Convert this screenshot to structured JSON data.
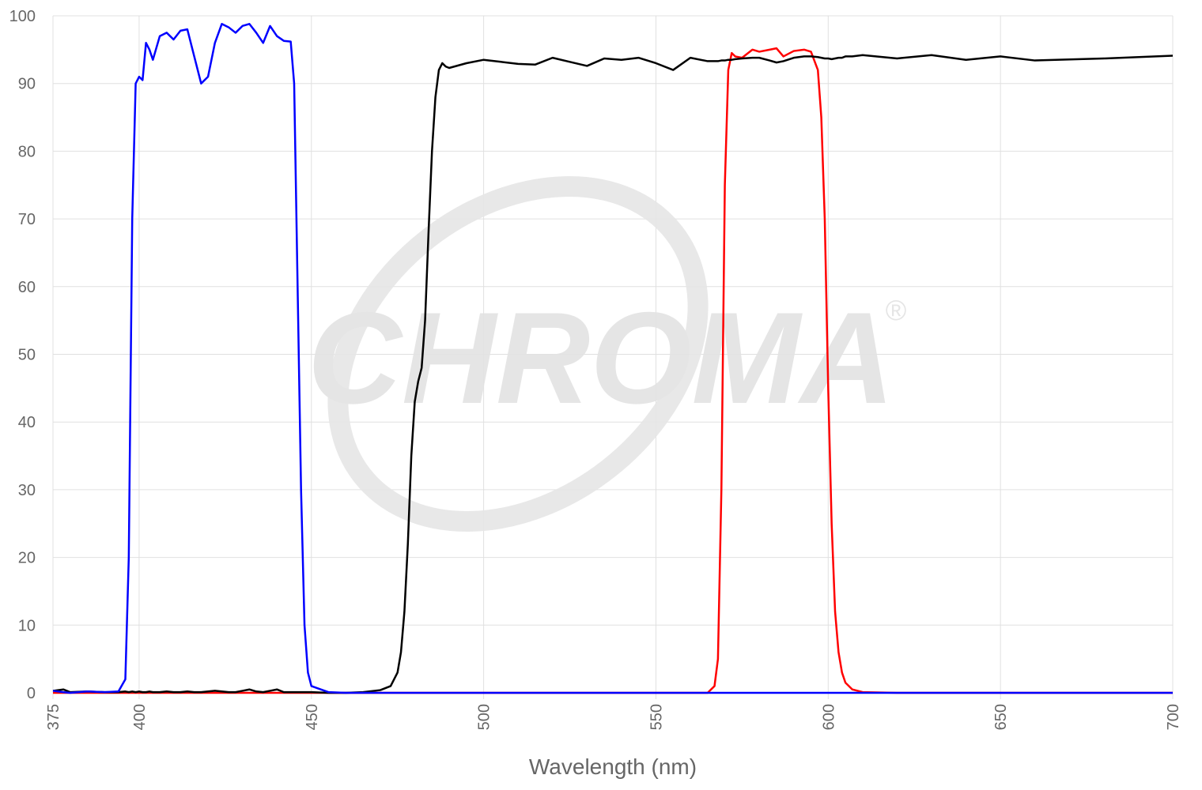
{
  "chart_data": {
    "type": "line",
    "x_label": "Wavelength (nm)",
    "watermark": "CHROMA",
    "watermark_symbol": "®",
    "x": [
      375,
      378,
      380,
      385,
      390,
      394,
      396,
      397,
      398,
      399,
      400,
      401,
      402,
      403,
      404,
      406,
      408,
      410,
      412,
      414,
      416,
      418,
      420,
      422,
      424,
      426,
      428,
      430,
      432,
      434,
      436,
      438,
      440,
      442,
      444,
      445,
      446,
      447,
      448,
      449,
      450,
      455,
      460,
      465,
      470,
      473,
      475,
      476,
      477,
      478,
      479,
      480,
      481,
      482,
      483,
      484,
      485,
      486,
      487,
      488,
      489,
      490,
      495,
      500,
      505,
      510,
      515,
      520,
      525,
      530,
      535,
      540,
      545,
      550,
      555,
      560,
      565,
      567,
      568,
      569,
      570,
      571,
      572,
      573,
      575,
      578,
      580,
      583,
      585,
      587,
      590,
      593,
      595,
      597,
      598,
      599,
      600,
      601,
      602,
      603,
      604,
      605,
      607,
      610,
      620,
      630,
      640,
      650,
      660,
      680,
      700
    ],
    "series": [
      {
        "color": "#ff0000",
        "values": [
          0,
          0,
          0,
          0,
          0,
          0,
          0,
          0,
          0,
          0,
          0,
          0,
          0,
          0,
          0,
          0,
          0,
          0,
          0,
          0,
          0,
          0,
          0,
          0,
          0,
          0,
          0,
          0,
          0,
          0,
          0,
          0,
          0,
          0,
          0,
          0,
          0,
          0,
          0,
          0,
          0,
          0,
          0,
          0,
          0,
          0,
          0,
          0,
          0,
          0,
          0,
          0,
          0,
          0,
          0,
          0,
          0,
          0,
          0,
          0,
          0,
          0,
          0,
          0,
          0,
          0,
          0,
          0,
          0,
          0,
          0,
          0,
          0,
          0,
          0,
          0,
          0,
          1,
          5,
          30,
          75,
          92,
          94.5,
          94,
          93.8,
          95,
          94.7,
          95,
          95.2,
          94,
          94.8,
          95,
          94.7,
          92,
          85,
          70,
          45,
          25,
          12,
          6,
          3,
          1.5,
          0.5,
          0.1,
          0,
          0,
          0,
          0,
          0,
          0,
          0
        ]
      },
      {
        "color": "#000000",
        "values": [
          0.3,
          0.5,
          0.1,
          0.2,
          0.1,
          0.1,
          0.2,
          0.1,
          0.2,
          0.1,
          0.2,
          0.1,
          0.1,
          0.2,
          0.1,
          0.1,
          0.2,
          0.1,
          0.1,
          0.2,
          0.1,
          0.1,
          0.2,
          0.3,
          0.2,
          0.1,
          0.1,
          0.3,
          0.5,
          0.2,
          0.1,
          0.3,
          0.5,
          0.1,
          0.1,
          0.1,
          0.1,
          0.1,
          0.1,
          0.1,
          0.1,
          0,
          0,
          0.1,
          0.4,
          1,
          3,
          6,
          12,
          22,
          35,
          43,
          46,
          48,
          55,
          68,
          80,
          88,
          92,
          93,
          92.5,
          92.3,
          93,
          93.5,
          93.2,
          92.9,
          92.8,
          93.8,
          93.2,
          92.6,
          93.7,
          93.5,
          93.8,
          93,
          92,
          93.8,
          93.3,
          93.3,
          93.3,
          93.4,
          93.4,
          93.5,
          93.5,
          93.6,
          93.7,
          93.8,
          93.8,
          93.4,
          93.1,
          93.3,
          93.8,
          94,
          94,
          93.9,
          93.8,
          93.7,
          93.7,
          93.6,
          93.7,
          93.8,
          93.8,
          94,
          94,
          94.2,
          93.7,
          94.2,
          93.5,
          94,
          93.4,
          93.7,
          94.1
        ]
      },
      {
        "color": "#0000ff",
        "values": [
          0.3,
          0.1,
          0,
          0.2,
          0.1,
          0.2,
          2,
          20,
          70,
          90,
          91,
          90.5,
          96,
          95,
          93.5,
          97,
          97.5,
          96.5,
          97.8,
          98,
          94,
          90,
          91,
          96,
          98.8,
          98.3,
          97.5,
          98.5,
          98.8,
          97.5,
          96,
          98.5,
          97,
          96.3,
          96.2,
          90,
          60,
          30,
          10,
          3,
          1,
          0.1,
          0,
          0,
          0,
          0,
          0,
          0,
          0,
          0,
          0,
          0,
          0,
          0,
          0,
          0,
          0,
          0,
          0,
          0,
          0,
          0,
          0,
          0,
          0,
          0,
          0,
          0,
          0,
          0,
          0,
          0,
          0,
          0,
          0,
          0,
          0,
          0,
          0,
          0,
          0,
          0,
          0,
          0,
          0,
          0,
          0,
          0,
          0,
          0,
          0,
          0,
          0,
          0,
          0,
          0,
          0,
          0,
          0,
          0,
          0,
          0,
          0,
          0,
          0,
          0,
          0,
          0,
          0,
          0,
          0
        ]
      }
    ],
    "xlim": [
      375,
      700
    ],
    "xticks": [
      375,
      400,
      450,
      500,
      550,
      600,
      650,
      700
    ],
    "ylim": [
      0,
      100
    ],
    "yticks": [
      0,
      10,
      20,
      30,
      40,
      50,
      60,
      70,
      80,
      90,
      100
    ],
    "grid": true
  }
}
